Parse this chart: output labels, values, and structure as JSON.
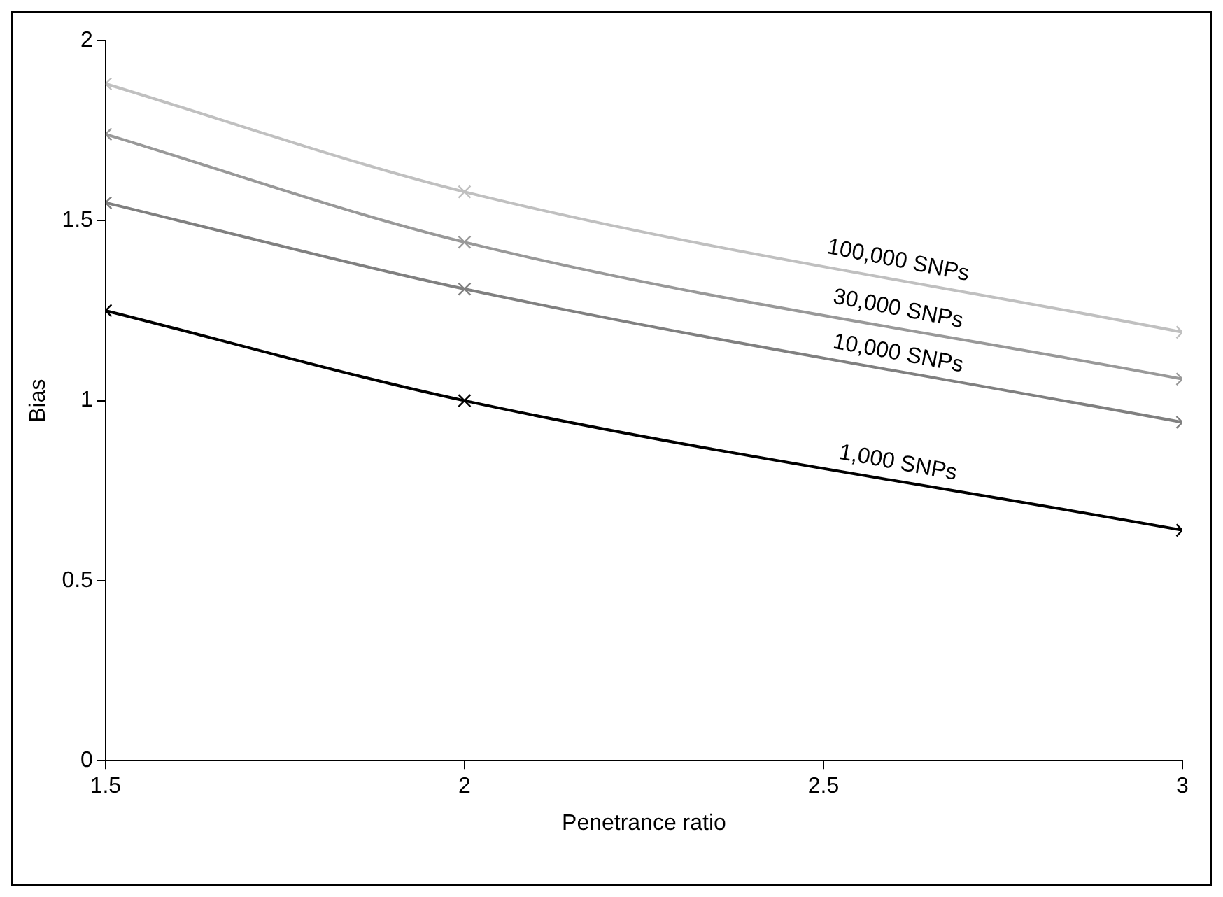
{
  "chart_data": {
    "type": "line",
    "xlabel": "Penetrance ratio",
    "ylabel": "Bias",
    "x": [
      1.5,
      2,
      3
    ],
    "series": [
      {
        "name": "100,000 SNPs",
        "color": "#c0c0c0",
        "values": [
          1.88,
          1.58,
          1.19
        ]
      },
      {
        "name": "30,000 SNPs",
        "color": "#999999",
        "values": [
          1.74,
          1.44,
          1.06
        ]
      },
      {
        "name": "10,000 SNPs",
        "color": "#808080",
        "values": [
          1.55,
          1.31,
          0.94
        ]
      },
      {
        "name": "1,000 SNPs",
        "color": "#000000",
        "values": [
          1.25,
          1.0,
          0.64
        ]
      }
    ],
    "xlim": [
      1.5,
      3
    ],
    "xticks": [
      1.5,
      2,
      2.5,
      3
    ],
    "ylim": [
      0,
      2
    ],
    "yticks": [
      0,
      0.5,
      1,
      1.5,
      2
    ],
    "grid": false,
    "legend": false,
    "marker": "cross",
    "line_style": "solid"
  }
}
